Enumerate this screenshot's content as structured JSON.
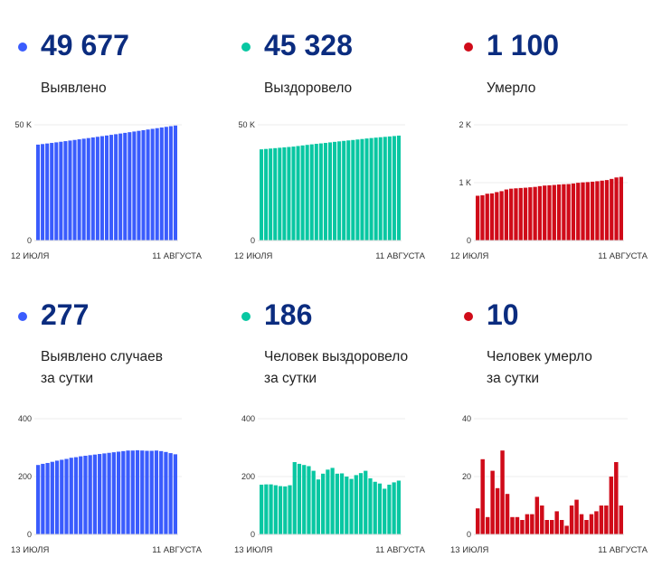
{
  "colors": {
    "blue": "#3a5cfd",
    "green": "#08c7a2",
    "red": "#d00b19",
    "number": "#0b2c7f"
  },
  "cards": [
    {
      "value": "49 677",
      "label": "Выявлено",
      "label2": "",
      "color": "#3a5cfd"
    },
    {
      "value": "45 328",
      "label": "Выздоровело",
      "label2": "",
      "color": "#08c7a2"
    },
    {
      "value": "1 100",
      "label": "Умерло",
      "label2": "",
      "color": "#d00b19"
    },
    {
      "value": "277",
      "label": "Выявлено случаев",
      "label2": "за сутки",
      "color": "#3a5cfd"
    },
    {
      "value": "186",
      "label": "Человек выздоровело",
      "label2": "за сутки",
      "color": "#08c7a2"
    },
    {
      "value": "10",
      "label": "Человек умерло",
      "label2": "за сутки",
      "color": "#d00b19"
    }
  ],
  "chart_data": [
    {
      "type": "bar",
      "title": "Выявлено",
      "x_start": "12 июля",
      "x_end": "11 августа",
      "xtick_labels": [
        "12 ИЮЛЯ",
        "11 АВГУСТА"
      ],
      "ylim": [
        0,
        50000
      ],
      "ytick_values": [
        0,
        50000
      ],
      "ytick_labels": [
        "0",
        "50 K"
      ],
      "grid": true,
      "color": "#3a5cfd",
      "values": [
        41439,
        41679,
        41923,
        42170,
        42421,
        42676,
        42934,
        43195,
        43460,
        43727,
        43997,
        44269,
        44543,
        44819,
        45097,
        45377,
        45659,
        45943,
        46229,
        46517,
        46807,
        47097,
        47388,
        47678,
        47967,
        48256,
        48546,
        48834,
        49119,
        49400,
        49677
      ]
    },
    {
      "type": "bar",
      "title": "Выздоровело",
      "x_start": "12 июля",
      "x_end": "11 августа",
      "xtick_labels": [
        "12 ИЮЛЯ",
        "11 АВГУСТА"
      ],
      "ylim": [
        0,
        50000
      ],
      "ytick_values": [
        0,
        50000
      ],
      "ytick_labels": [
        "0",
        "50 K"
      ],
      "grid": true,
      "color": "#08c7a2",
      "values": [
        39395,
        39567,
        39740,
        39913,
        40083,
        40250,
        40416,
        40586,
        40836,
        41080,
        41320,
        41556,
        41776,
        41966,
        42176,
        42400,
        42630,
        42840,
        43051,
        43251,
        43443,
        43648,
        43860,
        44080,
        44274,
        44456,
        44632,
        44790,
        44962,
        45142,
        45328
      ]
    },
    {
      "type": "bar",
      "title": "Умерло",
      "x_start": "12 июля",
      "x_end": "11 августа",
      "xtick_labels": [
        "12 ИЮЛЯ",
        "11 АВГУСТА"
      ],
      "ylim": [
        0,
        2000
      ],
      "ytick_values": [
        0,
        1000,
        2000
      ],
      "ytick_labels": [
        "0",
        "1 K",
        "2 K"
      ],
      "grid": true,
      "color": "#d00b19",
      "values": [
        774,
        783,
        809,
        815,
        837,
        853,
        882,
        896,
        902,
        908,
        913,
        920,
        927,
        940,
        950,
        955,
        960,
        968,
        973,
        976,
        986,
        998,
        1005,
        1010,
        1017,
        1025,
        1035,
        1045,
        1065,
        1090,
        1100
      ]
    },
    {
      "type": "bar",
      "title": "Выявлено случаев за сутки",
      "x_start": "13 июля",
      "x_end": "11 августа",
      "xtick_labels": [
        "13 ИЮЛЯ",
        "11 АВГУСТА"
      ],
      "ylim": [
        0,
        400
      ],
      "ytick_values": [
        0,
        200,
        400
      ],
      "ytick_labels": [
        "0",
        "200",
        "400"
      ],
      "grid": true,
      "color": "#3a5cfd",
      "values": [
        240,
        244,
        247,
        251,
        255,
        258,
        261,
        265,
        267,
        270,
        272,
        274,
        276,
        278,
        280,
        282,
        284,
        286,
        288,
        290,
        290,
        291,
        290,
        289,
        289,
        290,
        288,
        285,
        281,
        277
      ]
    },
    {
      "type": "bar",
      "title": "Человек выздоровело за сутки",
      "x_start": "13 июля",
      "x_end": "11 августа",
      "xtick_labels": [
        "13 ИЮЛЯ",
        "11 АВГУСТА"
      ],
      "ylim": [
        0,
        400
      ],
      "ytick_values": [
        0,
        200,
        400
      ],
      "ytick_labels": [
        "0",
        "200",
        "400"
      ],
      "grid": true,
      "color": "#08c7a2",
      "values": [
        172,
        173,
        173,
        170,
        167,
        166,
        170,
        250,
        244,
        240,
        236,
        220,
        190,
        210,
        224,
        230,
        210,
        211,
        200,
        192,
        205,
        212,
        220,
        194,
        182,
        176,
        158,
        172,
        180,
        186
      ]
    },
    {
      "type": "bar",
      "title": "Человек умерло за сутки",
      "x_start": "13 июля",
      "x_end": "11 августа",
      "xtick_labels": [
        "13 ИЮЛЯ",
        "11 АВГУСТА"
      ],
      "ylim": [
        0,
        40
      ],
      "ytick_values": [
        0,
        20,
        40
      ],
      "ytick_labels": [
        "0",
        "20",
        "40"
      ],
      "grid": true,
      "color": "#d00b19",
      "values": [
        9,
        26,
        6,
        22,
        16,
        29,
        14,
        6,
        6,
        5,
        7,
        7,
        13,
        10,
        5,
        5,
        8,
        5,
        3,
        10,
        12,
        7,
        5,
        7,
        8,
        10,
        10,
        20,
        25,
        10
      ]
    }
  ]
}
